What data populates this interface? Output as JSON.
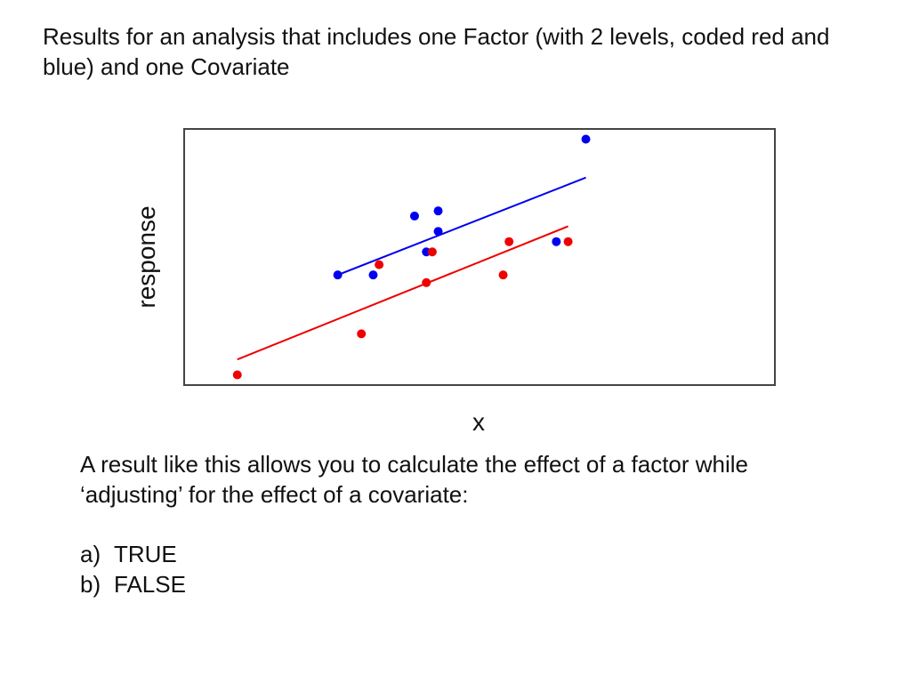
{
  "header": {
    "text": "Results for an analysis that includes one Factor (with 2 levels, coded red and blue) and one Covariate"
  },
  "chart_data": {
    "type": "scatter",
    "title": "",
    "xlabel": "x",
    "ylabel": "response",
    "xlim": [
      0,
      10
    ],
    "ylim": [
      0,
      10
    ],
    "grid": false,
    "ticks_shown": false,
    "series": [
      {
        "color": "#0000ee",
        "points": [
          {
            "x": 2.6,
            "y": 4.3
          },
          {
            "x": 3.2,
            "y": 4.3
          },
          {
            "x": 3.9,
            "y": 6.6
          },
          {
            "x": 4.1,
            "y": 5.2
          },
          {
            "x": 4.3,
            "y": 6.0
          },
          {
            "x": 4.3,
            "y": 6.8
          },
          {
            "x": 6.3,
            "y": 5.6
          },
          {
            "x": 6.8,
            "y": 9.6
          }
        ],
        "fit_line": {
          "x": [
            2.6,
            6.8
          ],
          "y": [
            4.3,
            8.1
          ]
        }
      },
      {
        "color": "#ee0000",
        "points": [
          {
            "x": 0.9,
            "y": 0.4
          },
          {
            "x": 3.0,
            "y": 2.0
          },
          {
            "x": 3.3,
            "y": 4.7
          },
          {
            "x": 4.1,
            "y": 4.0
          },
          {
            "x": 4.2,
            "y": 5.2
          },
          {
            "x": 5.4,
            "y": 4.3
          },
          {
            "x": 5.5,
            "y": 5.6
          },
          {
            "x": 6.5,
            "y": 5.6
          }
        ],
        "fit_line": {
          "x": [
            0.9,
            6.5
          ],
          "y": [
            1.0,
            6.2
          ]
        }
      }
    ]
  },
  "question": {
    "line1": "A result like this allows you to calculate the effect of a factor while",
    "line2": "‘adjusting’ for the effect of a covariate:"
  },
  "options": [
    {
      "letter": "a)",
      "label": "TRUE"
    },
    {
      "letter": "b)",
      "label": "FALSE"
    }
  ]
}
